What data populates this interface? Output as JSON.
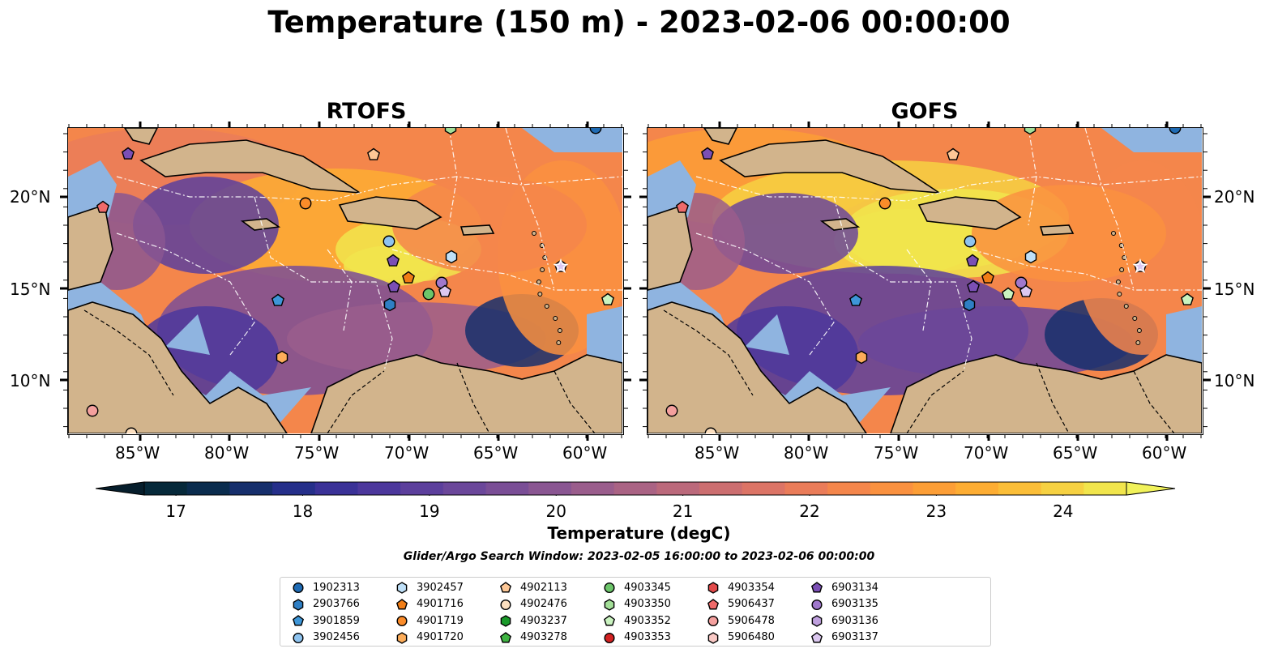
{
  "title": "Temperature (150 m) - 2023-02-06 00:00:00",
  "panels": [
    {
      "title": "RTOFS"
    },
    {
      "title": "GOFS"
    }
  ],
  "axes": {
    "x_ticks": [
      "85°W",
      "80°W",
      "75°W",
      "70°W",
      "65°W",
      "60°W"
    ],
    "y_ticks": [
      "20°N",
      "15°N",
      "10°N"
    ]
  },
  "colorbar": {
    "label": "Temperature (degC)",
    "ticks": [
      "17",
      "18",
      "19",
      "20",
      "21",
      "22",
      "23",
      "24"
    ],
    "min": 16.75,
    "max": 24.5,
    "colors": [
      "#06293a",
      "#0a2c4e",
      "#162f6c",
      "#252f8a",
      "#3a3197",
      "#4c379c",
      "#5c3f9c",
      "#6b479a",
      "#7a4e96",
      "#8a5692",
      "#9a5d8c",
      "#aa6384",
      "#bb697b",
      "#cc6e70",
      "#dc7466",
      "#ea7c59",
      "#f4864b",
      "#fa913f",
      "#fc9e36",
      "#fdad33",
      "#fbbe38",
      "#f6d142",
      "#f1e54c"
    ],
    "under_color": "#061e2c",
    "over_color": "#f1f25a"
  },
  "search_window": "Glider/Argo Search Window: 2023-02-05 16:00:00 to 2023-02-06 00:00:00",
  "legend": [
    {
      "label": "1902313",
      "marker": "circle",
      "color": "#1f6bb4"
    },
    {
      "label": "2903766",
      "marker": "hexagon",
      "color": "#2f7fc4"
    },
    {
      "label": "3901859",
      "marker": "pentagon",
      "color": "#3e96d8"
    },
    {
      "label": "3902456",
      "marker": "circle",
      "color": "#8ec3ef"
    },
    {
      "label": "3902457",
      "marker": "hexagon",
      "color": "#bfe0f8"
    },
    {
      "label": "4901716",
      "marker": "pentagon",
      "color": "#f07d16"
    },
    {
      "label": "4901719",
      "marker": "circle",
      "color": "#fb8c2a"
    },
    {
      "label": "4901720",
      "marker": "hexagon",
      "color": "#fdad5a"
    },
    {
      "label": "4902113",
      "marker": "pentagon",
      "color": "#fdc796"
    },
    {
      "label": "4902476",
      "marker": "circle",
      "color": "#fde0c0"
    },
    {
      "label": "4903237",
      "marker": "hexagon",
      "color": "#1a9a2a"
    },
    {
      "label": "4903278",
      "marker": "pentagon",
      "color": "#40b443"
    },
    {
      "label": "4903345",
      "marker": "circle",
      "color": "#6cc56a"
    },
    {
      "label": "4903350",
      "marker": "hexagon",
      "color": "#a3df98"
    },
    {
      "label": "4903352",
      "marker": "pentagon",
      "color": "#caf3c0"
    },
    {
      "label": "4903353",
      "marker": "circle",
      "color": "#d32121"
    },
    {
      "label": "4903354",
      "marker": "hexagon",
      "color": "#e24a4a"
    },
    {
      "label": "5906437",
      "marker": "pentagon",
      "color": "#ef6a6a"
    },
    {
      "label": "5906478",
      "marker": "circle",
      "color": "#f4a09e"
    },
    {
      "label": "5906480",
      "marker": "hexagon",
      "color": "#f9c9c5"
    },
    {
      "label": "6903134",
      "marker": "pentagon",
      "color": "#7b4fb5"
    },
    {
      "label": "6903135",
      "marker": "circle",
      "color": "#a078cc"
    },
    {
      "label": "6903136",
      "marker": "hexagon",
      "color": "#bfa0de"
    },
    {
      "label": "6903137",
      "marker": "pentagon",
      "color": "#dcc8f0"
    }
  ],
  "colors": {
    "land": "#d2b48c",
    "shallow_water": "#8fb4e0",
    "coast": "#000000"
  }
}
